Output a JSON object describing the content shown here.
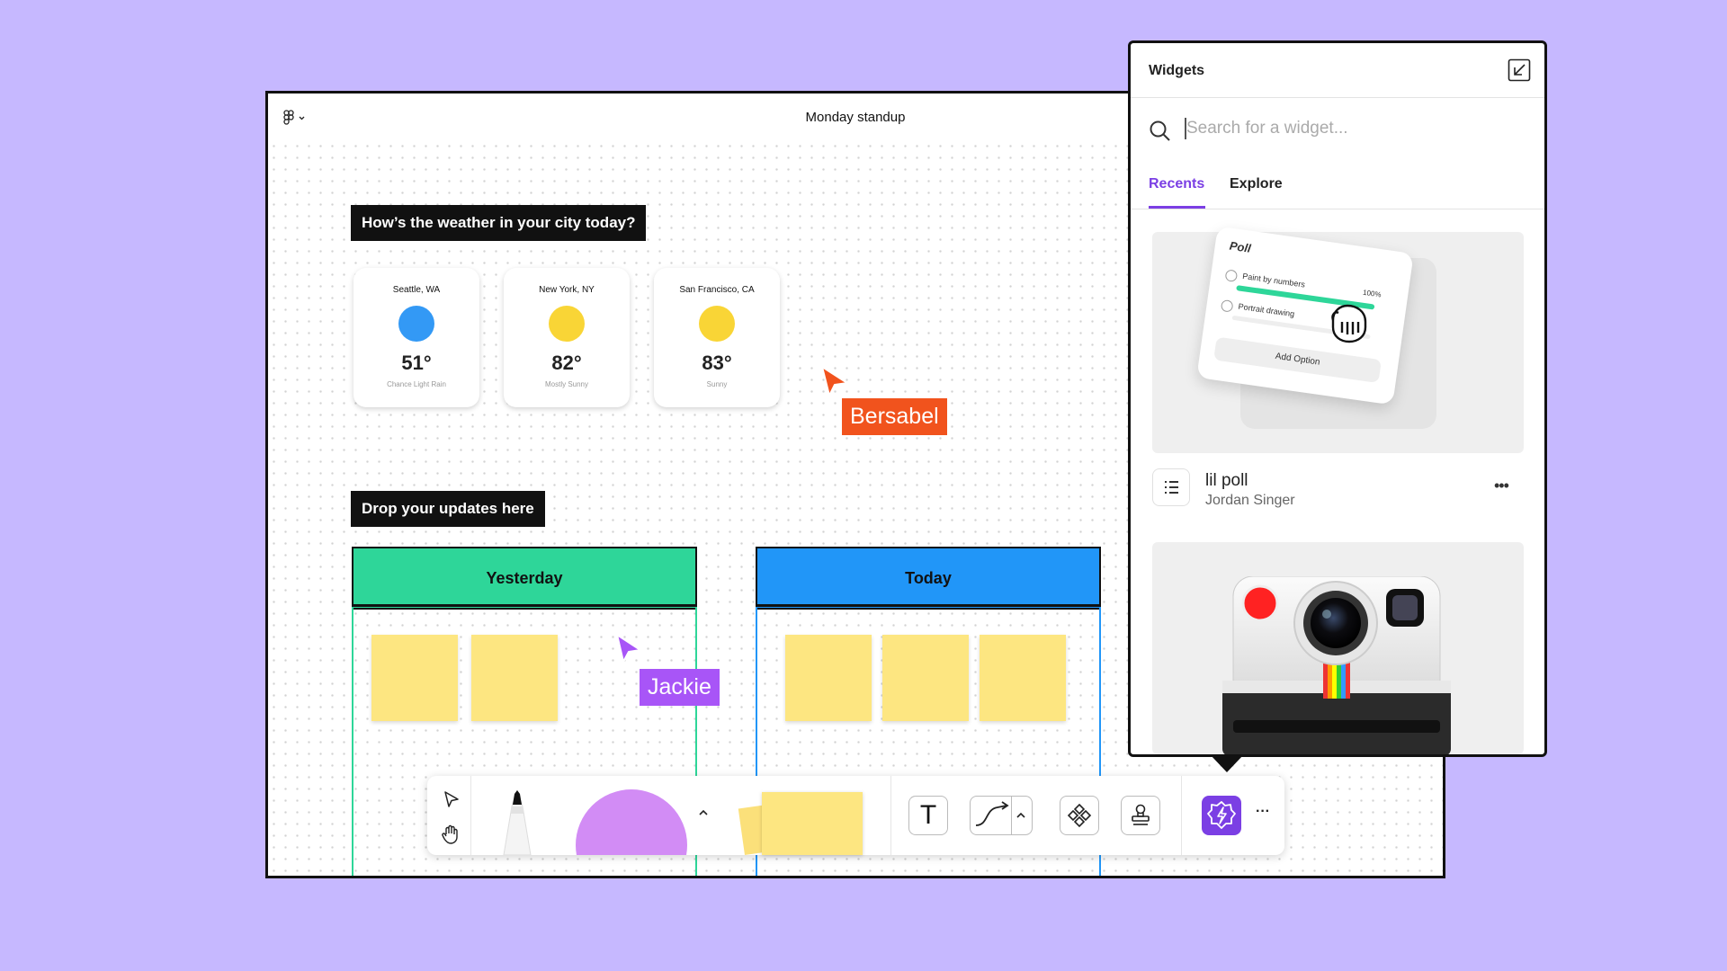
{
  "canvas": {
    "title": "Monday standup",
    "weather_prompt": "How’s the weather in your city today?",
    "updates_prompt": "Drop your updates here",
    "weather_cards": [
      {
        "city": "Seattle, WA",
        "temp": "51°",
        "condition": "Chance Light Rain",
        "color": "#3399f5"
      },
      {
        "city": "New York, NY",
        "temp": "82°",
        "condition": "Mostly Sunny",
        "color": "#f9d536"
      },
      {
        "city": "San Francisco, CA",
        "temp": "83°",
        "condition": "Sunny",
        "color": "#f9d536"
      }
    ],
    "boards": [
      {
        "label": "Yesterday",
        "color": "#2ed699"
      },
      {
        "label": "Today",
        "color": "#2196f8"
      }
    ],
    "cursors": [
      {
        "name": "Bersabel",
        "color": "#f1531d"
      },
      {
        "name": "Jackie",
        "color": "#a855f7"
      }
    ]
  },
  "toolbar": {
    "icons": [
      "select-arrow-icon",
      "hand-icon",
      "marker-icon",
      "shape-circle-icon",
      "chevron-up-icon",
      "sticky-note-icon",
      "text-icon",
      "connector-icon",
      "component-icon",
      "stamp-icon",
      "widget-icon",
      "more-icon"
    ],
    "more_label": "···",
    "text_tool_label": "T"
  },
  "widgets_panel": {
    "title": "Widgets",
    "search_placeholder": "Search for a widget...",
    "tabs": [
      "Recents",
      "Explore"
    ],
    "active_tab": "Recents",
    "poll_preview": {
      "title": "Poll",
      "options": [
        "Paint by numbers",
        "Portrait drawing"
      ],
      "percent": "100%",
      "add_label": "Add Option"
    },
    "items": [
      {
        "name": "lil poll",
        "author": "Jordan Singer"
      }
    ],
    "more_label": "•••"
  },
  "colors": {
    "background": "#c6b8ff",
    "accent": "#7b3fe4",
    "sticky": "#fde681"
  }
}
